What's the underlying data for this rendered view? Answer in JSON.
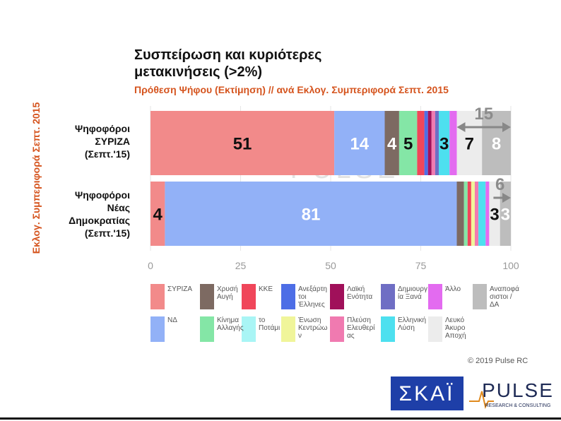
{
  "chart_data": {
    "type": "stacked-bar-horizontal",
    "title": "Συσπείρωση και κυριότερες μετακινήσεις (>2%)",
    "subtitle": "Πρόθεση Ψήφου (Εκτίμηση) // ανά Εκλογ. Συμπεριφορά Σεπτ. 2015",
    "y_label": "Εκλογ. Συμπεριφορά Σεπτ. 2015",
    "categories": [
      "Ψηφοφόροι ΣΥΡΙΖΑ (Σεπτ.'15)",
      "Ψηφοφόροι Νέας Δημοκρατίας (Σεπτ.'15)"
    ],
    "series": [
      {
        "name": "ΣΥΡΙΖΑ",
        "color": "#f28a8a",
        "values": [
          51,
          4
        ]
      },
      {
        "name": "ΝΔ",
        "color": "#92b1f7",
        "values": [
          14,
          81
        ]
      },
      {
        "name": "Χρυσή Αυγή",
        "color": "#7d6a62",
        "values": [
          4,
          2
        ]
      },
      {
        "name": "Κίνημα Αλλαγής",
        "color": "#84e6a6",
        "values": [
          5,
          1
        ]
      },
      {
        "name": "ΚΚΕ",
        "color": "#f0465a",
        "values": [
          2,
          1
        ]
      },
      {
        "name": "το Ποτάμι",
        "color": "#a9f5f5",
        "values": [
          0,
          0
        ]
      },
      {
        "name": "Ανεξάρτητοι Έλληνες",
        "color": "#4d6ee6",
        "values": [
          1,
          0
        ]
      },
      {
        "name": "Ένωση Κεντρώων",
        "color": "#f0f59a",
        "values": [
          0,
          1
        ]
      },
      {
        "name": "Λαϊκή Ενότητα",
        "color": "#a0105a",
        "values": [
          1,
          0
        ]
      },
      {
        "name": "Πλεύση Ελευθερίας",
        "color": "#f07ab0",
        "values": [
          1,
          1
        ]
      },
      {
        "name": "Δημιουργία Ξανά",
        "color": "#6f6ec4",
        "values": [
          1,
          0
        ]
      },
      {
        "name": "Ελληνική Λύση",
        "color": "#4de0ef",
        "values": [
          3,
          2
        ]
      },
      {
        "name": "Άλλο",
        "color": "#e36bf0",
        "values": [
          2,
          1
        ]
      },
      {
        "name": "Λευκό Άκυρο Αποχή",
        "color": "#ececec",
        "values": [
          7,
          3
        ]
      },
      {
        "name": "Αναποφάσιστοι / ΔΑ",
        "color": "#bdbdbd",
        "values": [
          8,
          3
        ]
      }
    ],
    "brackets": [
      15,
      6
    ],
    "xlim": [
      0,
      100
    ],
    "xticks": [
      0,
      25,
      50,
      75,
      100
    ],
    "grid": true,
    "copyright": "© 2019 Pulse RC",
    "watermark": "PULSE",
    "watermark_sub": "RESEARCH & CONSULTING",
    "logo_left": "ΣΚΑΪ",
    "logo_right": "PULSE",
    "logo_right_sub": "RESEARCH & CONSULTING"
  }
}
